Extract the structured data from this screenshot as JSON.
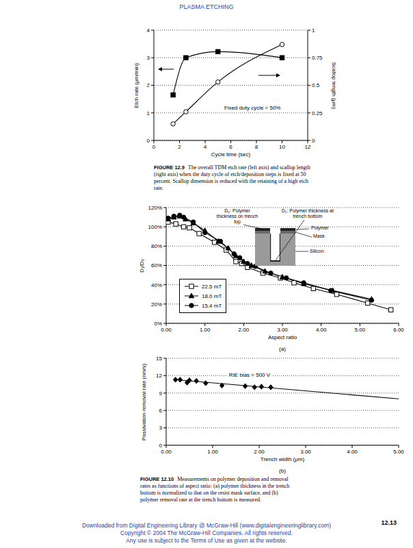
{
  "header": "PLASMA ETCHING",
  "chart_data": [
    {
      "type": "line",
      "x": [
        1.5,
        2.5,
        5,
        10
      ],
      "xlim": [
        0,
        12
      ],
      "xticks": [
        0,
        2,
        4,
        6,
        8,
        10,
        12
      ],
      "ylim": [
        0,
        4
      ],
      "yticks": [
        0,
        1,
        2,
        3,
        4
      ],
      "y2lim": [
        0,
        1
      ],
      "y2ticks": [
        0,
        0.25,
        0.5,
        0.75,
        1
      ],
      "x_label": "Cycle time (sec)",
      "y_label": "Etch rate (μm/min)",
      "y2_label": "Scallop length (μm)",
      "annotations": [
        "Fixed duty cycle = 50%"
      ],
      "grid": true,
      "series": [
        {
          "color": "#000000",
          "marker": "square",
          "line_style": "solid",
          "values": [
            1.65,
            3.0,
            3.22,
            3.0
          ]
        },
        {
          "color": "#000000",
          "marker": "open_circle",
          "line_style": "solid",
          "axis": "y2",
          "values": [
            0.15,
            0.26,
            0.53,
            0.87
          ]
        }
      ]
    },
    {
      "type": "line",
      "xlim": [
        0,
        6
      ],
      "xticks": [
        {
          "value": 0,
          "label": "0.00"
        },
        {
          "value": 1,
          "label": "1.00"
        },
        {
          "value": 2,
          "label": "2.00"
        },
        {
          "value": 3,
          "label": "3.00"
        },
        {
          "value": 4,
          "label": "4.00"
        },
        {
          "value": 5,
          "label": "5.00"
        },
        {
          "value": 6,
          "label": "6.00"
        }
      ],
      "ylim": [
        0,
        120
      ],
      "yticks": [
        {
          "value": 0,
          "label": "0%"
        },
        {
          "value": 20,
          "label": "20%"
        },
        {
          "value": 40,
          "label": "40%"
        },
        {
          "value": 60,
          "label": "60%"
        },
        {
          "value": 80,
          "label": "80%"
        },
        {
          "value": 100,
          "label": "100%"
        },
        {
          "value": 120,
          "label": "120%"
        }
      ],
      "x_label": "Aspect ratio",
      "y_label": "D₁/D₀",
      "panel_label": "(a)",
      "annotations": [
        "D₀: Polymer thickness on trench top",
        "D₁: Polymer thickness at trench bottom",
        "Polymer",
        "Mask",
        "Silicon"
      ],
      "legend": "lower left",
      "grid": true,
      "series": [
        {
          "name": "22.5 mT",
          "color": "#000000",
          "marker": "open_square",
          "line_style": "solid",
          "x": [
            0.05,
            0.25,
            0.45,
            0.6,
            0.85,
            1.25,
            1.55,
            1.8,
            1.95,
            2.1,
            2.5,
            2.95,
            3.3,
            3.8,
            4.4,
            5.2,
            5.8
          ],
          "values": [
            105,
            103,
            100,
            99,
            93,
            84,
            76,
            64,
            62,
            58,
            52,
            47,
            42,
            36,
            30,
            21,
            14
          ]
        },
        {
          "name": "18.0 mT",
          "color": "#000000",
          "marker": "triangle",
          "line_style": "solid",
          "x": [
            0.05,
            0.2,
            0.35,
            0.5,
            0.7,
            1.0,
            1.35,
            1.6,
            1.8,
            2.0,
            2.2,
            2.55,
            3.0,
            3.55,
            4.3,
            5.3
          ],
          "values": [
            108,
            110,
            111,
            108,
            104,
            96,
            85,
            78,
            70,
            64,
            60,
            54,
            48,
            41,
            34,
            25
          ]
        },
        {
          "name": "15.4 mT",
          "color": "#000000",
          "marker": "circle",
          "line_style": "solid",
          "x": [
            0.05,
            0.2,
            0.35,
            0.45,
            0.7,
            1.0,
            1.4,
            1.75,
            1.9,
            2.1,
            2.3,
            2.7,
            3.1,
            3.55,
            4.25,
            5.3
          ],
          "values": [
            109,
            111,
            112,
            110,
            105,
            94,
            85,
            72,
            68,
            62,
            59,
            52,
            47,
            42,
            34,
            24
          ]
        }
      ]
    },
    {
      "type": "line",
      "xlim": [
        0,
        5
      ],
      "xticks": [
        {
          "value": 0,
          "label": "0.00"
        },
        {
          "value": 1,
          "label": "1.00"
        },
        {
          "value": 2,
          "label": "2.00"
        },
        {
          "value": 3,
          "label": "3.00"
        },
        {
          "value": 4,
          "label": "4.00"
        },
        {
          "value": 5,
          "label": "5.00"
        }
      ],
      "ylim": [
        0,
        15
      ],
      "yticks": [
        0,
        3,
        6,
        9,
        12,
        15
      ],
      "x_label": "Trench width (μm)",
      "y_label": "Passivation removal rate (nm/s)",
      "panel_label": "(b)",
      "annotations": [
        "RIE bias = 500 V"
      ],
      "grid": true,
      "series": [
        {
          "color": "#000000",
          "marker": "diamond",
          "line_style": "none",
          "x": [
            0.2,
            0.3,
            0.45,
            0.5,
            0.65,
            0.85,
            1.2,
            1.7,
            1.9,
            2.05,
            2.25
          ],
          "values": [
            11.3,
            11.3,
            10.8,
            11.2,
            11.1,
            10.7,
            10.3,
            10.2,
            10.0,
            10.1,
            10.0
          ]
        },
        {
          "color": "#000000",
          "marker": "none",
          "line_style": "solid",
          "x": [
            0.2,
            5
          ],
          "values": [
            11.3,
            8.0
          ]
        }
      ]
    }
  ],
  "captions": [
    {
      "label": "FIGURE 12.9",
      "text": "The overall TDM etch rate (left axis) and scallop length (right axis) when the duty cycle of etch/deposition steps is fixed at 50 percent. Scallop dimension is reduced with the retaining of a high etch rate."
    },
    {
      "label": "FIGURE 12.10",
      "text": "Measurements on polymer deposition and removal rates as functions of aspect ratio: (a) polymer thickness in the trench bottom is normalized to that on the resist mask surface, and (b) polymer removal rate at the trench bottom is measured."
    }
  ],
  "page_number": "12.13",
  "footer": [
    "Downloaded from Digital Engineering Library @ McGraw-Hill (www.digitalengineeringlibrary.com)",
    "Copyright © 2004 The McGraw-Hill Companies. All rights reserved.",
    "Any use is subject to the Terms of Use as given at the website."
  ]
}
